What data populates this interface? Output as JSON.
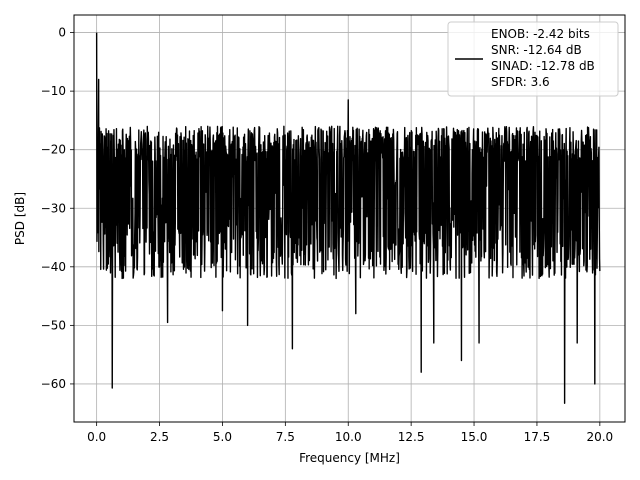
{
  "chart_data": {
    "type": "line",
    "title": "",
    "xlabel": "Frequency [MHz]",
    "ylabel": "PSD [dB]",
    "xlim": [
      -0.9,
      21.0
    ],
    "ylim": [
      -66.5,
      3.0
    ],
    "xticks": [
      0.0,
      2.5,
      5.0,
      7.5,
      10.0,
      12.5,
      15.0,
      17.5,
      20.0
    ],
    "xtick_labels": [
      "0.0",
      "2.5",
      "5.0",
      "7.5",
      "10.0",
      "12.5",
      "15.0",
      "17.5",
      "20.0"
    ],
    "yticks": [
      0,
      -10,
      -20,
      -30,
      -40,
      -50,
      -60
    ],
    "ytick_labels": [
      "0",
      "−10",
      "−20",
      "−30",
      "−40",
      "−50",
      "−60"
    ],
    "grid": true,
    "legend_position": "top-right",
    "line_color": "#000000",
    "legend": {
      "lines": [
        "ENOB: -2.42 bits",
        "SNR: -12.64 dB",
        "SINAD: -12.78 dB",
        "SFDR: 3.6"
      ]
    },
    "series": [
      {
        "x_range": [
          0.0,
          20.0
        ],
        "noise_floor_db": -28,
        "upper_envelope_db": -19,
        "lower_envelope_db": -40,
        "peaks": [
          {
            "x": 0.0,
            "y": 0.0
          },
          {
            "x": 0.08,
            "y": -8.0
          },
          {
            "x": 10.0,
            "y": -11.5
          }
        ],
        "dips": [
          {
            "x": 0.62,
            "y": -60.7
          },
          {
            "x": 2.82,
            "y": -49.5
          },
          {
            "x": 5.0,
            "y": -47.5
          },
          {
            "x": 6.0,
            "y": -50.0
          },
          {
            "x": 7.78,
            "y": -54.0
          },
          {
            "x": 10.3,
            "y": -48.0
          },
          {
            "x": 12.9,
            "y": -58.0
          },
          {
            "x": 13.4,
            "y": -53.0
          },
          {
            "x": 14.5,
            "y": -56.0
          },
          {
            "x": 15.2,
            "y": -53.0
          },
          {
            "x": 18.6,
            "y": -63.3
          },
          {
            "x": 19.1,
            "y": -53.0
          },
          {
            "x": 19.8,
            "y": -60.0
          }
        ]
      }
    ]
  }
}
